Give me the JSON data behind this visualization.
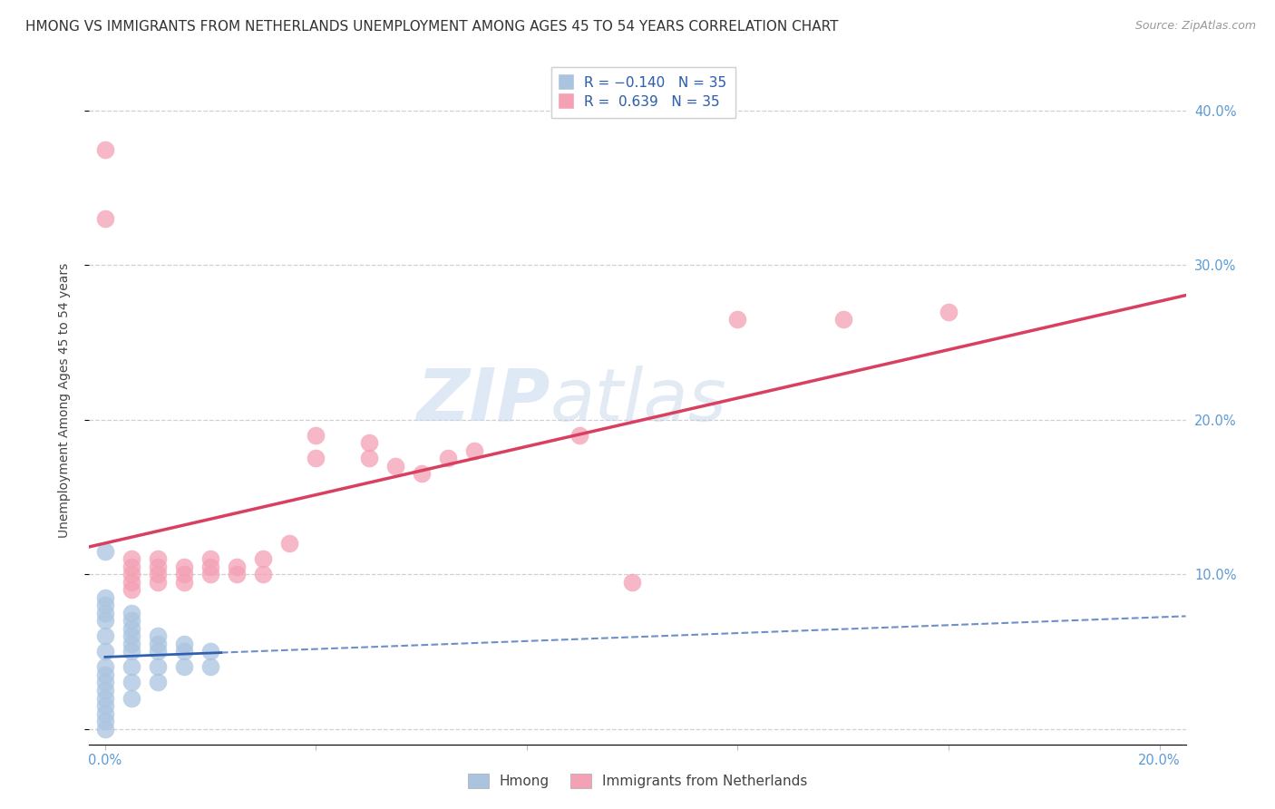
{
  "title": "HMONG VS IMMIGRANTS FROM NETHERLANDS UNEMPLOYMENT AMONG AGES 45 TO 54 YEARS CORRELATION CHART",
  "source": "Source: ZipAtlas.com",
  "tick_color": "#5b9bd5",
  "ylabel": "Unemployment Among Ages 45 to 54 years",
  "xlim": [
    -0.003,
    0.205
  ],
  "ylim": [
    -0.01,
    0.435
  ],
  "watermark_zip": "ZIP",
  "watermark_atlas": "atlas",
  "legend_R1": "R = -0.140",
  "legend_N1": "N = 35",
  "legend_R2": "R =  0.639",
  "legend_N2": "N = 35",
  "hmong_color": "#aac4e0",
  "netherlands_color": "#f4a0b5",
  "hmong_line_color": "#3060b0",
  "netherlands_line_color": "#d94060",
  "hmong_scatter_x": [
    0.0,
    0.0,
    0.0,
    0.0,
    0.0,
    0.0,
    0.0,
    0.0,
    0.0,
    0.0,
    0.0,
    0.0,
    0.005,
    0.005,
    0.005,
    0.005,
    0.005,
    0.005,
    0.01,
    0.01,
    0.01,
    0.01,
    0.015,
    0.015,
    0.02,
    0.02,
    0.0,
    0.0,
    0.0,
    0.005,
    0.005,
    0.01,
    0.0,
    0.005,
    0.015
  ],
  "hmong_scatter_y": [
    0.0,
    0.005,
    0.01,
    0.015,
    0.02,
    0.025,
    0.03,
    0.035,
    0.04,
    0.05,
    0.06,
    0.07,
    0.02,
    0.03,
    0.04,
    0.05,
    0.055,
    0.06,
    0.03,
    0.04,
    0.05,
    0.055,
    0.04,
    0.05,
    0.04,
    0.05,
    0.075,
    0.08,
    0.085,
    0.065,
    0.07,
    0.06,
    0.115,
    0.075,
    0.055
  ],
  "netherlands_scatter_x": [
    0.0,
    0.0,
    0.005,
    0.005,
    0.005,
    0.005,
    0.005,
    0.01,
    0.01,
    0.01,
    0.01,
    0.015,
    0.015,
    0.015,
    0.02,
    0.02,
    0.02,
    0.025,
    0.025,
    0.03,
    0.03,
    0.035,
    0.04,
    0.04,
    0.05,
    0.05,
    0.055,
    0.06,
    0.065,
    0.07,
    0.09,
    0.1,
    0.12,
    0.14,
    0.16
  ],
  "netherlands_scatter_y": [
    0.375,
    0.33,
    0.09,
    0.095,
    0.1,
    0.105,
    0.11,
    0.095,
    0.1,
    0.105,
    0.11,
    0.095,
    0.1,
    0.105,
    0.1,
    0.105,
    0.11,
    0.1,
    0.105,
    0.1,
    0.11,
    0.12,
    0.19,
    0.175,
    0.185,
    0.175,
    0.17,
    0.165,
    0.175,
    0.18,
    0.19,
    0.095,
    0.265,
    0.265,
    0.27
  ],
  "grid_color": "#d0d0d0",
  "background_color": "#ffffff",
  "title_fontsize": 11,
  "axis_label_fontsize": 10,
  "tick_fontsize": 10.5
}
